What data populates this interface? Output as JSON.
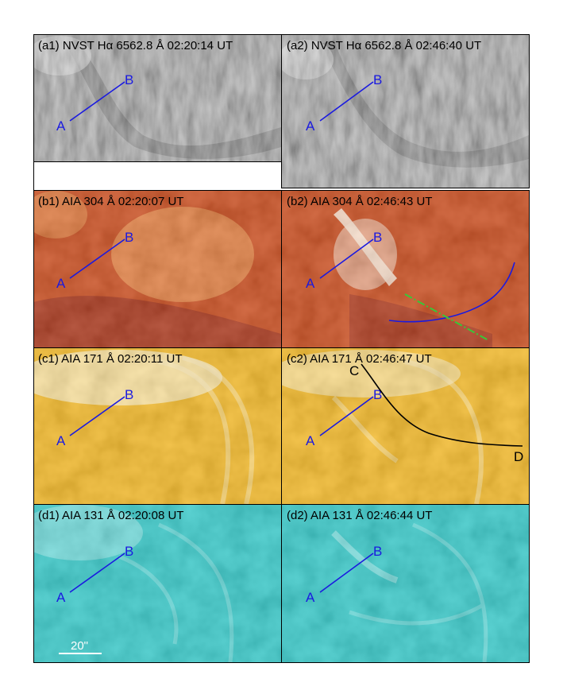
{
  "panels": [
    {
      "id": "a1",
      "label": "(a1) NVST Hα  6562.8 Å   02:20:14 UT",
      "colors": [
        "#3a3a3a",
        "#9a9a9a",
        "#dcdcdc"
      ],
      "kind": "ha"
    },
    {
      "id": "a2",
      "label": "(a2) NVST Hα  6562.8 Å   02:46:40 UT",
      "colors": [
        "#3a3a3a",
        "#9a9a9a",
        "#dcdcdc"
      ],
      "kind": "ha"
    },
    {
      "id": "b1",
      "label": "(b1) AIA 304 Å   02:20:07 UT",
      "colors": [
        "#8a1000",
        "#c83a05",
        "#f39a4a"
      ],
      "kind": "aia"
    },
    {
      "id": "b2",
      "label": "(b2) AIA 304 Å   02:46:43 UT",
      "colors": [
        "#8a1000",
        "#c83a05",
        "#fbe3cf"
      ],
      "kind": "aia"
    },
    {
      "id": "c1",
      "label": "(c1) AIA 171 Å   02:20:11 UT",
      "colors": [
        "#e08f00",
        "#f6b410",
        "#fff0c0"
      ],
      "kind": "aia"
    },
    {
      "id": "c2",
      "label": "(c2) AIA 171 Å   02:46:47 UT",
      "colors": [
        "#e08f00",
        "#f6b410",
        "#fff0c0"
      ],
      "kind": "aia"
    },
    {
      "id": "d1",
      "label": "(d1) AIA 131 Å   02:20:08 UT",
      "colors": [
        "#00a6a6",
        "#22c7c7",
        "#a6f0f0"
      ],
      "kind": "aia"
    },
    {
      "id": "d2",
      "label": "(d2) AIA 131 Å   02:46:44 UT",
      "colors": [
        "#00a6a6",
        "#22c7c7",
        "#a6f0f0"
      ],
      "kind": "aia"
    }
  ],
  "slit": {
    "start_label": "A",
    "end_label": "B",
    "color": "#1a1ae0"
  },
  "path_cd": {
    "start_label": "C",
    "end_label": "D",
    "color": "#000000"
  },
  "b2_overlay": {
    "curve_color": "#1a1ae0",
    "line_color": "#38c838"
  },
  "scale_bar": {
    "label": "20\""
  }
}
